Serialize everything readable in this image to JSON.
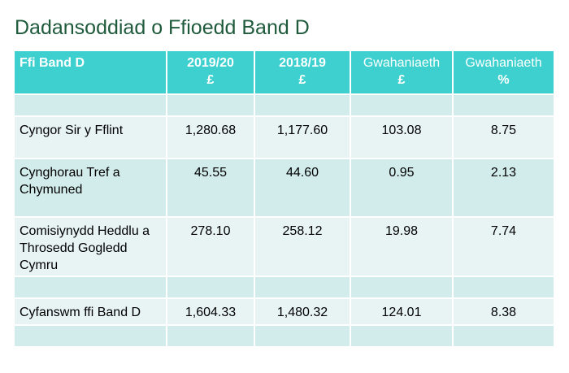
{
  "title": "Dadansoddiad o Ffioedd Band D",
  "table": {
    "headers": [
      {
        "line1": "Ffi Band D",
        "line2": ""
      },
      {
        "line1": "2019/20",
        "line2": "£"
      },
      {
        "line1": "2018/19",
        "line2": "£"
      },
      {
        "line1": "Gwahaniaeth",
        "line2": "£"
      },
      {
        "line1": "Gwahaniaeth",
        "line2": "%"
      }
    ],
    "rows": [
      [
        "",
        "",
        "",
        "",
        ""
      ],
      [
        "Cyngor Sir y Fflint",
        "1,280.68",
        "1,177.60",
        "103.08",
        "8.75"
      ],
      [
        "Cynghorau Tref a Chymuned",
        "45.55",
        "44.60",
        "0.95",
        "2.13"
      ],
      [
        "Comisiynydd Heddlu a Throsedd Gogledd Cymru",
        "278.10",
        "258.12",
        "19.98",
        "7.74"
      ],
      [
        "",
        "",
        "",
        "",
        ""
      ],
      [
        "Cyfanswm ffi Band D",
        "1,604.33",
        "1,480.32",
        "124.01",
        "8.38"
      ],
      [
        "",
        "",
        "",
        "",
        ""
      ]
    ]
  },
  "colors": {
    "title": "#1f5a3c",
    "header_bg": "#3ecfcf",
    "row_dark": "#d2ecec",
    "row_light": "#e8f4f4"
  }
}
